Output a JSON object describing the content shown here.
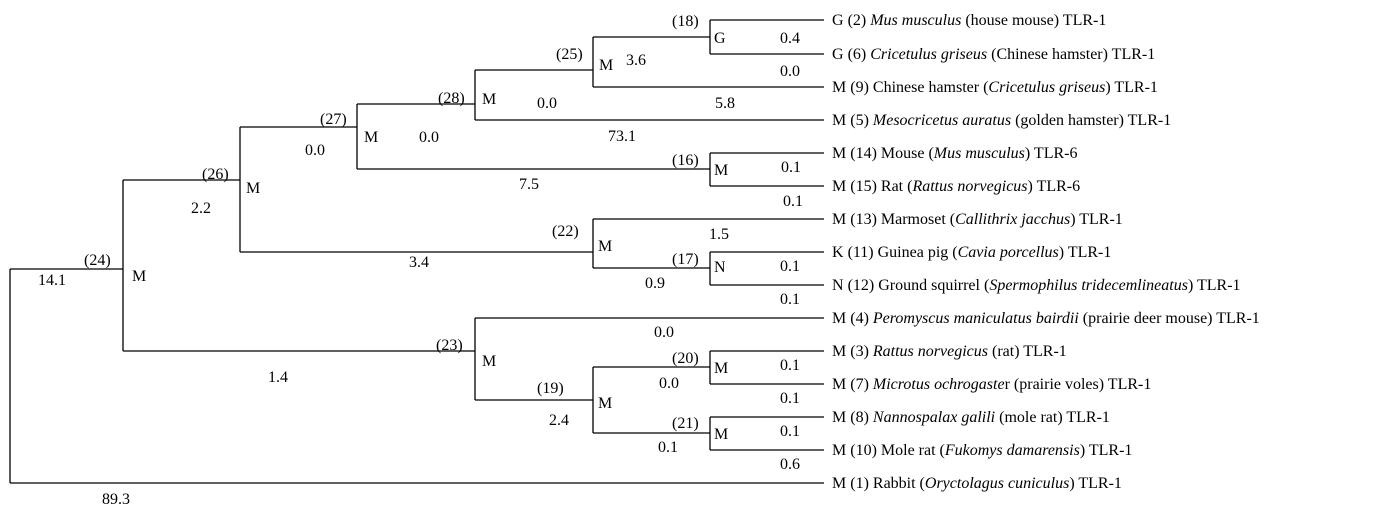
{
  "tree": {
    "internal_nodes": [
      {
        "id": "24",
        "id_label": "(24)",
        "state": "M"
      },
      {
        "id": "26",
        "id_label": "(26)",
        "state": "M"
      },
      {
        "id": "27",
        "id_label": "(27)",
        "state": "M"
      },
      {
        "id": "28",
        "id_label": "(28)",
        "state": "M"
      },
      {
        "id": "25",
        "id_label": "(25)",
        "state": "M"
      },
      {
        "id": "18",
        "id_label": "(18)",
        "state": "G"
      },
      {
        "id": "16",
        "id_label": "(16)",
        "state": "M"
      },
      {
        "id": "22",
        "id_label": "(22)",
        "state": "M"
      },
      {
        "id": "17",
        "id_label": "(17)",
        "state": "N"
      },
      {
        "id": "23",
        "id_label": "(23)",
        "state": "M"
      },
      {
        "id": "19",
        "id_label": "(19)",
        "state": "M"
      },
      {
        "id": "20",
        "id_label": "(20)",
        "state": "M"
      },
      {
        "id": "21",
        "id_label": "(21)",
        "state": "M"
      }
    ],
    "leaves": [
      {
        "state": "G",
        "num": "(2)",
        "parts": [
          {
            "t": " ",
            "i": false
          },
          {
            "t": "Mus musculus",
            "i": true
          },
          {
            "t": " (house mouse) TLR-1",
            "i": false
          }
        ]
      },
      {
        "state": "G",
        "num": "(6)",
        "parts": [
          {
            "t": " ",
            "i": false
          },
          {
            "t": "Cricetulus griseus",
            "i": true
          },
          {
            "t": " (Chinese hamster) TLR-1",
            "i": false
          }
        ]
      },
      {
        "state": "M",
        "num": "(9)",
        "parts": [
          {
            "t": " Chinese hamster (",
            "i": false
          },
          {
            "t": "Cricetulus griseus",
            "i": true
          },
          {
            "t": ") TLR-1",
            "i": false
          }
        ]
      },
      {
        "state": "M",
        "num": "(5)",
        "parts": [
          {
            "t": " ",
            "i": false
          },
          {
            "t": "Mesocricetus auratus",
            "i": true
          },
          {
            "t": " (golden hamster) TLR-1",
            "i": false
          }
        ]
      },
      {
        "state": "M",
        "num": "(14)",
        "parts": [
          {
            "t": " Mouse (",
            "i": false
          },
          {
            "t": "Mus musculus",
            "i": true
          },
          {
            "t": ") TLR-6",
            "i": false
          }
        ]
      },
      {
        "state": "M",
        "num": "(15)",
        "parts": [
          {
            "t": " Rat (",
            "i": false
          },
          {
            "t": "Rattus norvegicus",
            "i": true
          },
          {
            "t": ") TLR-6",
            "i": false
          }
        ]
      },
      {
        "state": "M",
        "num": "(13)",
        "parts": [
          {
            "t": " Marmoset (",
            "i": false
          },
          {
            "t": "Callithrix jacchus",
            "i": true
          },
          {
            "t": ") TLR-1",
            "i": false
          }
        ]
      },
      {
        "state": "K",
        "num": "(11)",
        "parts": [
          {
            "t": " Guinea pig (",
            "i": false
          },
          {
            "t": "Cavia porcellus",
            "i": true
          },
          {
            "t": ") TLR-1",
            "i": false
          }
        ]
      },
      {
        "state": "N",
        "num": "(12)",
        "parts": [
          {
            "t": " Ground squirrel (",
            "i": false
          },
          {
            "t": "Spermophilus tridecemlineatus",
            "i": true
          },
          {
            "t": ") TLR-1",
            "i": false
          }
        ]
      },
      {
        "state": "M",
        "num": "(4)",
        "parts": [
          {
            "t": " ",
            "i": false
          },
          {
            "t": "Peromyscus maniculatus bairdii",
            "i": true
          },
          {
            "t": " (prairie deer mouse) TLR-1",
            "i": false
          }
        ]
      },
      {
        "state": "M",
        "num": "(3)",
        "parts": [
          {
            "t": " ",
            "i": false
          },
          {
            "t": "Rattus norvegicus",
            "i": true
          },
          {
            "t": " (rat) TLR-1",
            "i": false
          }
        ]
      },
      {
        "state": "M",
        "num": "(7)",
        "parts": [
          {
            "t": " ",
            "i": false
          },
          {
            "t": "Microtus ochrogaste",
            "i": true
          },
          {
            "t": "r (prairie voles) TLR-1",
            "i": false
          }
        ]
      },
      {
        "state": "M",
        "num": "(8)",
        "parts": [
          {
            "t": " ",
            "i": false
          },
          {
            "t": "Nannospalax galili",
            "i": true
          },
          {
            "t": " (mole rat) TLR-1",
            "i": false
          }
        ]
      },
      {
        "state": "M",
        "num": "(10)",
        "parts": [
          {
            "t": " Mole rat (",
            "i": false
          },
          {
            "t": "Fukomys damarensis",
            "i": true
          },
          {
            "t": ") TLR-1",
            "i": false
          }
        ]
      },
      {
        "state": "M",
        "num": "(1)",
        "parts": [
          {
            "t": " Rabbit (",
            "i": false
          },
          {
            "t": "Oryctolagus cuniculus",
            "i": true
          },
          {
            "t": ") TLR-1",
            "i": false
          }
        ]
      }
    ],
    "branch_lengths": [
      "14.1",
      "89.3",
      "2.2",
      "1.4",
      "0.0",
      "3.4",
      "0.0",
      "7.5",
      "0.0",
      "73.1",
      "3.6",
      "5.8",
      "0.4",
      "0.0",
      "0.1",
      "0.1",
      "1.5",
      "0.9",
      "0.1",
      "0.1",
      "0.0",
      "2.4",
      "0.0",
      "0.1",
      "0.1",
      "0.1",
      "0.1",
      "0.6"
    ]
  }
}
